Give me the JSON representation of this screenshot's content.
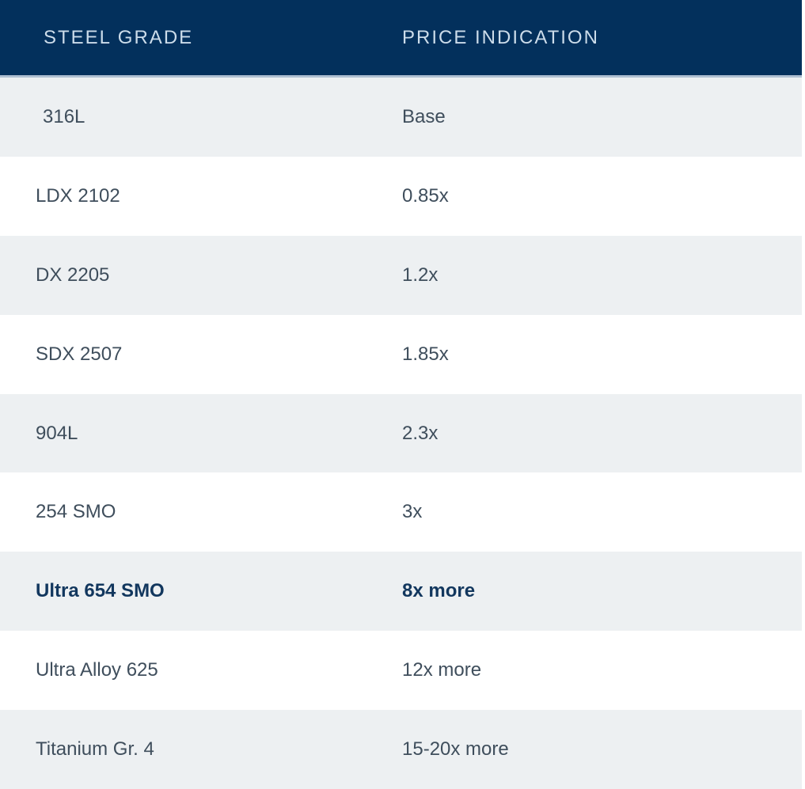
{
  "table": {
    "columns": [
      "STEEL GRADE",
      "PRICE INDICATION"
    ],
    "rows": [
      {
        "grade": "316L",
        "price": "Base",
        "bold": false
      },
      {
        "grade": "LDX 2102",
        "price": "0.85x",
        "bold": false
      },
      {
        "grade": "DX 2205",
        "price": "1.2x",
        "bold": false
      },
      {
        "grade": "SDX 2507",
        "price": "1.85x",
        "bold": false
      },
      {
        "grade": "904L",
        "price": "2.3x",
        "bold": false
      },
      {
        "grade": "254 SMO",
        "price": "3x",
        "bold": false
      },
      {
        "grade": "Ultra 654 SMO",
        "price": "8x more",
        "bold": true
      },
      {
        "grade": "Ultra Alloy 625",
        "price": "12x more",
        "bold": false
      },
      {
        "grade": "Titanium Gr. 4",
        "price": "15-20x more",
        "bold": false
      }
    ]
  },
  "colors": {
    "header_bg": "#03305c",
    "header_text": "#ccdcea",
    "header_separator": "#aebfd2",
    "row_bg": "#ffffff",
    "row_alt_bg": "#edf0f2",
    "body_text": "#3f4e5c",
    "bold_text": "#12375e"
  },
  "chart_data": {
    "type": "table",
    "title": "Steel grade price indication",
    "columns": [
      "STEEL GRADE",
      "PRICE INDICATION"
    ],
    "rows": [
      [
        "316L",
        "Base"
      ],
      [
        "LDX 2102",
        "0.85x"
      ],
      [
        "DX 2205",
        "1.2x"
      ],
      [
        "SDX 2507",
        "1.85x"
      ],
      [
        "904L",
        "2.3x"
      ],
      [
        "254 SMO",
        "3x"
      ],
      [
        "Ultra 654 SMO",
        "8x more"
      ],
      [
        "Ultra Alloy 625",
        "12x more"
      ],
      [
        "Titanium Gr. 4",
        "15-20x more"
      ]
    ],
    "price_multiplier_vs_base": {
      "316L": 1,
      "LDX 2102": 0.85,
      "DX 2205": 1.2,
      "SDX 2507": 1.85,
      "904L": 2.3,
      "254 SMO": 3,
      "Ultra 654 SMO": 8,
      "Ultra Alloy 625": 12,
      "Titanium Gr. 4": [
        15,
        20
      ]
    },
    "emphasized_row": "Ultra 654 SMO",
    "layout": "two-column striped table, dark navy header, zebra rows starting grey"
  }
}
